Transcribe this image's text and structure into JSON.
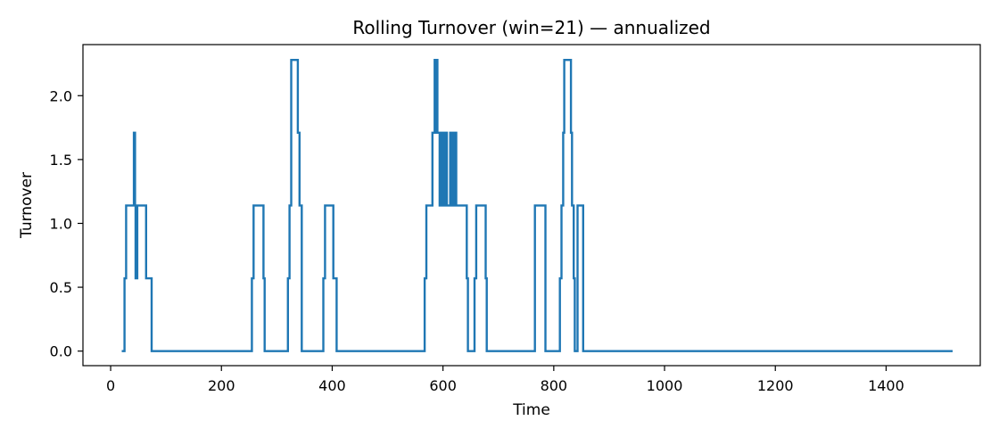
{
  "chart_data": {
    "type": "line",
    "title": "Rolling Turnover (win=21) — annualized",
    "xlabel": "Time",
    "ylabel": "Turnover",
    "xlim": [
      -50,
      1570
    ],
    "ylim": [
      -0.114,
      2.4
    ],
    "xticks": [
      0,
      200,
      400,
      600,
      800,
      1000,
      1200,
      1400
    ],
    "xtick_labels": [
      "0",
      "200",
      "400",
      "600",
      "800",
      "1000",
      "1200",
      "1400"
    ],
    "yticks": [
      0.0,
      0.5,
      1.0,
      1.5,
      2.0
    ],
    "ytick_labels": [
      "0.0",
      "0.5",
      "1.0",
      "1.5",
      "2.0"
    ],
    "grid": false,
    "legend": "none",
    "step": true,
    "series": [
      {
        "color": "#1f77b4",
        "x": [
          20,
          25,
          28,
          42,
          44,
          45,
          46,
          47,
          48,
          49,
          52,
          55,
          64,
          68,
          74,
          255,
          258,
          262,
          276,
          278,
          281,
          320,
          323,
          326,
          330,
          338,
          341,
          345,
          348,
          384,
          387,
          390,
          402,
          404,
          408,
          567,
          570,
          573,
          581,
          585,
          586,
          587,
          588,
          589,
          590,
          594,
          597,
          599,
          601,
          603,
          605,
          607,
          610,
          613,
          616,
          618,
          620,
          622,
          624,
          627,
          630,
          643,
          645,
          650,
          657,
          660,
          664,
          677,
          679,
          683,
          766,
          768,
          785,
          788,
          811,
          814,
          817,
          819,
          821,
          831,
          833,
          836,
          838,
          840,
          843,
          850,
          853,
          873,
          1520
        ],
        "y": [
          0.0,
          0.57,
          1.14,
          1.71,
          1.14,
          0.57,
          1.14,
          0.57,
          1.14,
          1.14,
          1.14,
          1.14,
          0.57,
          0.57,
          0.0,
          0.57,
          1.14,
          1.14,
          0.57,
          0.0,
          0.0,
          0.57,
          1.14,
          2.28,
          2.28,
          1.71,
          1.14,
          0.0,
          0.0,
          0.57,
          1.14,
          1.14,
          0.57,
          0.57,
          0.0,
          0.57,
          1.14,
          1.14,
          1.71,
          2.28,
          1.71,
          2.28,
          1.71,
          2.28,
          1.71,
          1.14,
          1.71,
          1.14,
          1.71,
          1.14,
          1.71,
          1.14,
          1.14,
          1.71,
          1.14,
          1.71,
          1.14,
          1.71,
          1.14,
          1.14,
          1.14,
          0.57,
          0.0,
          0.0,
          0.57,
          1.14,
          1.14,
          0.57,
          0.0,
          0.0,
          1.14,
          1.14,
          0.0,
          0.0,
          0.57,
          1.14,
          1.71,
          2.28,
          2.28,
          1.71,
          1.14,
          0.57,
          0.0,
          0.0,
          1.14,
          1.14,
          0.0,
          0.0,
          0.0
        ]
      }
    ]
  }
}
